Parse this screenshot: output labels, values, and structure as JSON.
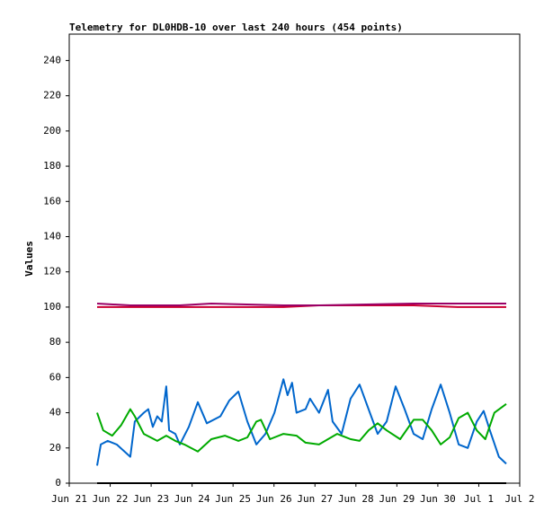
{
  "chart_data": {
    "type": "line",
    "title": "Telemetry for DL0HDB-10 over last 240 hours (454 points)",
    "ylabel": "Values",
    "xlim": [
      0,
      11
    ],
    "xticks": [
      {
        "value": 0,
        "label": "Jun 21"
      },
      {
        "value": 1,
        "label": "Jun 22"
      },
      {
        "value": 2,
        "label": "Jun 23"
      },
      {
        "value": 3,
        "label": "Jun 24"
      },
      {
        "value": 4,
        "label": "Jun 25"
      },
      {
        "value": 5,
        "label": "Jun 26"
      },
      {
        "value": 6,
        "label": "Jun 27"
      },
      {
        "value": 7,
        "label": "Jun 28"
      },
      {
        "value": 8,
        "label": "Jun 29"
      },
      {
        "value": 9,
        "label": "Jun 30"
      },
      {
        "value": 10,
        "label": "Jul 1"
      },
      {
        "value": 11,
        "label": "Jul 2"
      }
    ],
    "ylim": [
      0,
      255
    ],
    "yticks": [
      0,
      20,
      40,
      60,
      80,
      100,
      120,
      140,
      160,
      180,
      200,
      220,
      240
    ],
    "grid": false,
    "series": [
      {
        "color": "#cc0033",
        "x": [
          0.68,
          1.49,
          2.7,
          3.47,
          5.23,
          6.1,
          8.41,
          9.51,
          10.67
        ],
        "values": [
          100,
          100,
          100,
          100,
          100,
          101,
          101,
          100,
          100
        ]
      },
      {
        "color": "#990066",
        "x": [
          0.68,
          1.49,
          2.7,
          3.47,
          5.23,
          6.1,
          8.41,
          9.51,
          10.67
        ],
        "values": [
          102,
          101,
          101,
          102,
          101,
          101,
          102,
          102,
          102
        ]
      },
      {
        "color": "#0066cc",
        "x": [
          0.68,
          0.77,
          0.94,
          1.16,
          1.49,
          1.6,
          1.82,
          1.93,
          2.04,
          2.15,
          2.26,
          2.37,
          2.44,
          2.59,
          2.7,
          2.92,
          3.14,
          3.36,
          3.69,
          3.91,
          4.13,
          4.35,
          4.57,
          4.79,
          5.01,
          5.23,
          5.33,
          5.44,
          5.55,
          5.77,
          5.88,
          6.1,
          6.32,
          6.43,
          6.65,
          6.87,
          7.09,
          7.31,
          7.53,
          7.75,
          7.97,
          8.19,
          8.41,
          8.63,
          8.85,
          9.07,
          9.29,
          9.51,
          9.73,
          9.95,
          10.12,
          10.27,
          10.49,
          10.67
        ],
        "values": [
          10,
          22,
          24,
          22,
          15,
          35,
          40,
          42,
          32,
          38,
          35,
          55,
          30,
          28,
          22,
          32,
          46,
          34,
          38,
          47,
          52,
          35,
          22,
          28,
          40,
          59,
          50,
          57,
          40,
          42,
          48,
          40,
          53,
          35,
          28,
          48,
          56,
          42,
          28,
          35,
          55,
          42,
          28,
          25,
          42,
          56,
          40,
          22,
          20,
          35,
          41,
          30,
          15,
          11
        ]
      },
      {
        "color": "#00aa00",
        "x": [
          0.68,
          0.83,
          1.05,
          1.27,
          1.49,
          1.6,
          1.82,
          2.15,
          2.37,
          2.59,
          2.81,
          3.14,
          3.47,
          3.8,
          4.13,
          4.35,
          4.57,
          4.68,
          4.9,
          5.23,
          5.55,
          5.77,
          6.1,
          6.32,
          6.54,
          6.87,
          7.09,
          7.31,
          7.53,
          7.75,
          8.08,
          8.41,
          8.63,
          8.85,
          9.07,
          9.29,
          9.51,
          9.73,
          9.95,
          10.16,
          10.38,
          10.67
        ],
        "values": [
          40,
          30,
          27,
          33,
          42,
          38,
          28,
          24,
          27,
          24,
          22,
          18,
          25,
          27,
          24,
          26,
          35,
          36,
          25,
          28,
          27,
          23,
          22,
          25,
          28,
          25,
          24,
          30,
          34,
          30,
          25,
          36,
          36,
          30,
          22,
          26,
          37,
          40,
          30,
          25,
          40,
          45
        ]
      },
      {
        "color": "#000000",
        "x": [
          0.68,
          10.67
        ],
        "values": [
          0,
          0
        ]
      }
    ]
  }
}
